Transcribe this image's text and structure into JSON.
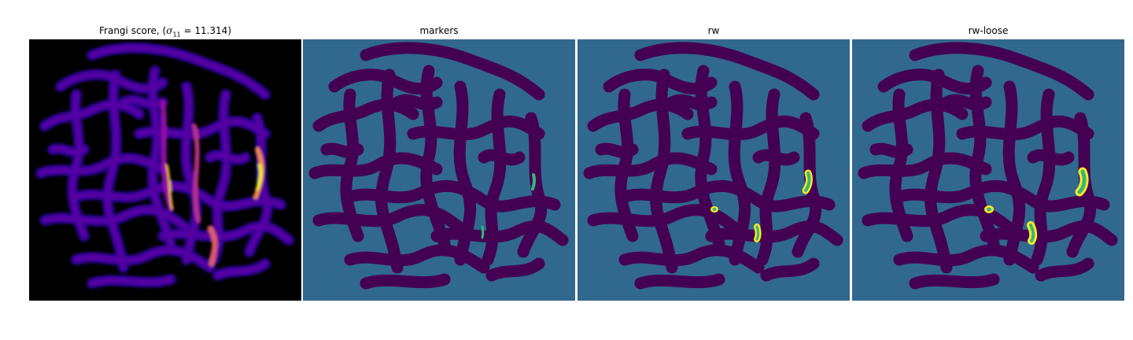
{
  "panels": [
    {
      "title": "Frangi score, (σ11 = 11.314)",
      "colormap": "plasma"
    },
    {
      "title": "markers",
      "colormap": "viridis"
    },
    {
      "title": "rw",
      "colormap": "viridis"
    },
    {
      "title": "rw-loose",
      "colormap": "viridis"
    }
  ],
  "title_parts": {
    "prefix": "Frangi score, (",
    "sigma": "σ",
    "subscript": "11",
    "suffix": " = 11.314)"
  },
  "colors": {
    "background_black": "#000000",
    "label_background": "#31688e",
    "vessel_dark": "#440154",
    "marker_green": "#35b779",
    "segment_yellow": "#fde725",
    "plasma_low": "#2a0593",
    "plasma_mid": "#8b0aa5",
    "plasma_high": "#db5c68",
    "plasma_peak": "#f0f921"
  }
}
